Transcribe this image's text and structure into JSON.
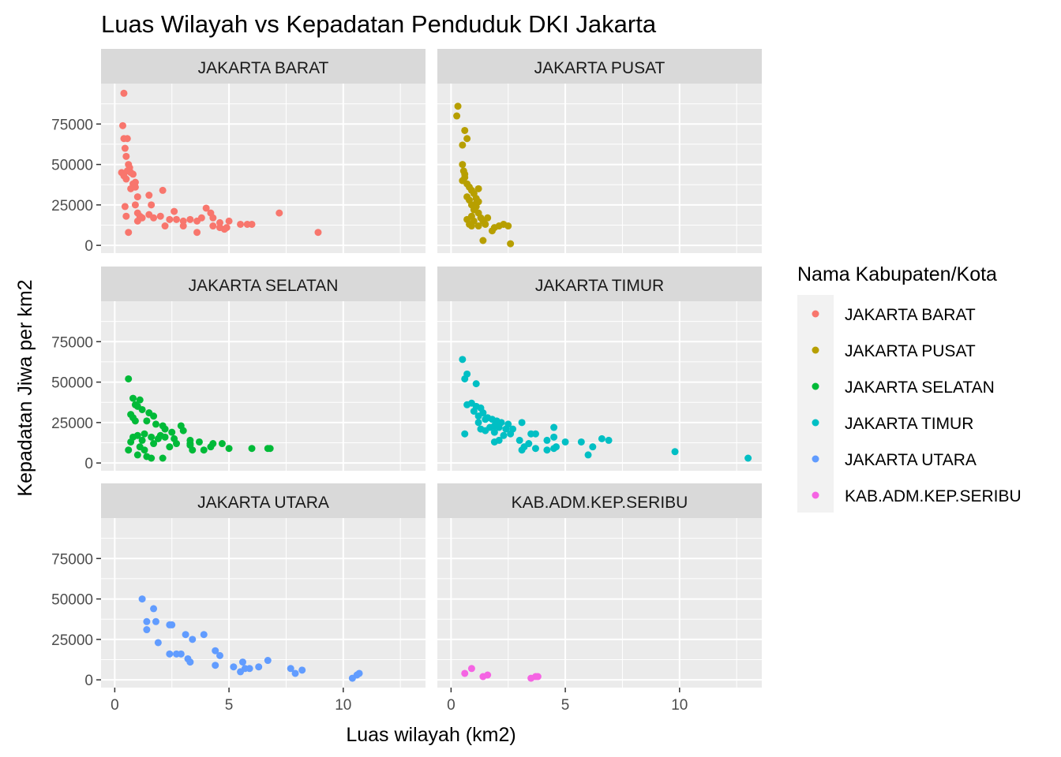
{
  "chart_data": {
    "type": "scatter",
    "title": "Luas Wilayah vs Kepadatan Penduduk DKI Jakarta",
    "xlabel": "Luas wilayah (km2)",
    "ylabel": "Kepadatan Jiwa per km2",
    "xlim": [
      -0.6,
      13.6
    ],
    "ylim": [
      -4800,
      100000
    ],
    "x_ticks": [
      0,
      5,
      10
    ],
    "y_ticks": [
      0,
      25000,
      50000,
      75000
    ],
    "x_tick_labels": [
      "0",
      "5",
      "10"
    ],
    "y_tick_labels": [
      "0",
      "25000",
      "50000",
      "75000"
    ],
    "grid": true,
    "legend_position": "right",
    "legend_title": "Nama Kabupaten/Kota",
    "panels": [
      {
        "name": "JAKARTA BARAT",
        "color": "#F8766D",
        "points": [
          [
            0.4,
            94000
          ],
          [
            0.35,
            74000
          ],
          [
            0.4,
            66000
          ],
          [
            0.55,
            66000
          ],
          [
            0.45,
            60000
          ],
          [
            0.5,
            55000
          ],
          [
            0.6,
            50000
          ],
          [
            0.65,
            48000
          ],
          [
            0.55,
            46000
          ],
          [
            0.3,
            45000
          ],
          [
            0.4,
            43000
          ],
          [
            0.7,
            45000
          ],
          [
            0.8,
            44000
          ],
          [
            0.5,
            41000
          ],
          [
            0.9,
            39000
          ],
          [
            0.8,
            38000
          ],
          [
            0.7,
            35000
          ],
          [
            0.9,
            36000
          ],
          [
            1.0,
            30000
          ],
          [
            2.1,
            34000
          ],
          [
            1.5,
            31000
          ],
          [
            0.45,
            24000
          ],
          [
            0.9,
            25000
          ],
          [
            1.6,
            25000
          ],
          [
            0.5,
            18000
          ],
          [
            1.0,
            20000
          ],
          [
            1.1,
            18000
          ],
          [
            1.2,
            17000
          ],
          [
            1.5,
            19000
          ],
          [
            1.7,
            17000
          ],
          [
            2.0,
            18000
          ],
          [
            1.0,
            15000
          ],
          [
            2.4,
            16000
          ],
          [
            2.6,
            21000
          ],
          [
            2.7,
            16000
          ],
          [
            3.0,
            15000
          ],
          [
            3.3,
            16000
          ],
          [
            3.6,
            15000
          ],
          [
            3.8,
            17000
          ],
          [
            4.0,
            23000
          ],
          [
            4.2,
            20000
          ],
          [
            4.3,
            17000
          ],
          [
            4.6,
            14000
          ],
          [
            4.8,
            10000
          ],
          [
            4.6,
            11000
          ],
          [
            4.9,
            11000
          ],
          [
            5.0,
            15000
          ],
          [
            5.5,
            13000
          ],
          [
            5.8,
            13000
          ],
          [
            6.0,
            13000
          ],
          [
            7.2,
            20000
          ],
          [
            8.9,
            8000
          ],
          [
            0.6,
            8000
          ],
          [
            2.2,
            12000
          ],
          [
            3.6,
            8000
          ],
          [
            3.0,
            12000
          ],
          [
            4.3,
            12000
          ]
        ]
      },
      {
        "name": "JAKARTA PUSAT",
        "color": "#B79F00",
        "points": [
          [
            0.3,
            86000
          ],
          [
            0.25,
            80000
          ],
          [
            0.6,
            71000
          ],
          [
            0.7,
            66000
          ],
          [
            0.5,
            62000
          ],
          [
            0.5,
            50000
          ],
          [
            0.55,
            46000
          ],
          [
            0.6,
            44000
          ],
          [
            0.5,
            40000
          ],
          [
            0.6,
            42000
          ],
          [
            0.7,
            38000
          ],
          [
            0.8,
            36000
          ],
          [
            0.9,
            34000
          ],
          [
            0.7,
            30000
          ],
          [
            0.8,
            28000
          ],
          [
            1.0,
            32000
          ],
          [
            1.1,
            29000
          ],
          [
            1.2,
            27000
          ],
          [
            0.9,
            25000
          ],
          [
            1.0,
            22000
          ],
          [
            1.1,
            24000
          ],
          [
            1.2,
            20000
          ],
          [
            0.7,
            16000
          ],
          [
            0.9,
            18000
          ],
          [
            1.0,
            15000
          ],
          [
            1.3,
            17000
          ],
          [
            1.4,
            15000
          ],
          [
            0.8,
            13000
          ],
          [
            0.9,
            12000
          ],
          [
            1.2,
            12000
          ],
          [
            1.5,
            13000
          ],
          [
            1.6,
            17000
          ],
          [
            1.9,
            11000
          ],
          [
            1.8,
            9000
          ],
          [
            2.1,
            12000
          ],
          [
            2.3,
            13000
          ],
          [
            2.5,
            12000
          ],
          [
            1.4,
            3000
          ],
          [
            2.6,
            1000
          ],
          [
            1.1,
            26000
          ],
          [
            1.2,
            35000
          ]
        ]
      },
      {
        "name": "JAKARTA SELATAN",
        "color": "#00BA38",
        "points": [
          [
            0.6,
            52000
          ],
          [
            0.8,
            40000
          ],
          [
            1.1,
            39000
          ],
          [
            0.9,
            36000
          ],
          [
            1.0,
            35000
          ],
          [
            1.2,
            33000
          ],
          [
            0.7,
            30000
          ],
          [
            1.5,
            31000
          ],
          [
            1.7,
            29000
          ],
          [
            0.8,
            28000
          ],
          [
            0.9,
            26000
          ],
          [
            1.4,
            26000
          ],
          [
            1.8,
            24000
          ],
          [
            2.1,
            23000
          ],
          [
            2.2,
            21000
          ],
          [
            2.9,
            23000
          ],
          [
            3.0,
            20000
          ],
          [
            2.5,
            19000
          ],
          [
            2.0,
            17000
          ],
          [
            1.3,
            18000
          ],
          [
            1.0,
            17000
          ],
          [
            0.8,
            16000
          ],
          [
            1.6,
            16000
          ],
          [
            1.9,
            15000
          ],
          [
            2.2,
            16000
          ],
          [
            2.6,
            15000
          ],
          [
            3.3,
            14000
          ],
          [
            3.7,
            13000
          ],
          [
            4.3,
            12000
          ],
          [
            4.7,
            12000
          ],
          [
            5.0,
            9000
          ],
          [
            4.2,
            10000
          ],
          [
            3.9,
            8000
          ],
          [
            3.4,
            8000
          ],
          [
            3.3,
            11000
          ],
          [
            2.4,
            10000
          ],
          [
            1.7,
            12000
          ],
          [
            1.2,
            14000
          ],
          [
            0.7,
            13000
          ],
          [
            0.6,
            8000
          ],
          [
            1.3,
            8000
          ],
          [
            1.0,
            5000
          ],
          [
            1.4,
            4000
          ],
          [
            1.6,
            3000
          ],
          [
            2.1,
            3000
          ],
          [
            6.0,
            9000
          ],
          [
            6.7,
            9000
          ],
          [
            6.8,
            9000
          ],
          [
            3.3,
            12000
          ],
          [
            2.7,
            12000
          ],
          [
            1.1,
            10000
          ]
        ]
      },
      {
        "name": "JAKARTA TIMUR",
        "color": "#00BFC4",
        "points": [
          [
            0.5,
            64000
          ],
          [
            0.7,
            55000
          ],
          [
            0.6,
            52000
          ],
          [
            1.1,
            49000
          ],
          [
            0.7,
            36000
          ],
          [
            0.9,
            37000
          ],
          [
            1.1,
            35000
          ],
          [
            1.3,
            34000
          ],
          [
            1.0,
            32000
          ],
          [
            1.4,
            31000
          ],
          [
            1.2,
            29000
          ],
          [
            1.6,
            28000
          ],
          [
            1.5,
            27000
          ],
          [
            1.8,
            27000
          ],
          [
            2.0,
            26000
          ],
          [
            2.2,
            25000
          ],
          [
            3.1,
            25000
          ],
          [
            2.5,
            24000
          ],
          [
            1.7,
            22000
          ],
          [
            1.9,
            23000
          ],
          [
            2.1,
            22000
          ],
          [
            2.4,
            21000
          ],
          [
            1.3,
            21000
          ],
          [
            1.5,
            20000
          ],
          [
            0.6,
            18000
          ],
          [
            1.9,
            19000
          ],
          [
            2.6,
            18000
          ],
          [
            2.7,
            21000
          ],
          [
            3.5,
            18000
          ],
          [
            3.7,
            18000
          ],
          [
            4.5,
            22000
          ],
          [
            4.5,
            16000
          ],
          [
            4.2,
            14000
          ],
          [
            3.0,
            14000
          ],
          [
            3.4,
            12000
          ],
          [
            2.1,
            14000
          ],
          [
            1.9,
            13000
          ],
          [
            3.2,
            10000
          ],
          [
            3.7,
            9000
          ],
          [
            4.2,
            8000
          ],
          [
            4.6,
            10000
          ],
          [
            5.0,
            13000
          ],
          [
            5.7,
            13000
          ],
          [
            6.0,
            5000
          ],
          [
            6.2,
            10000
          ],
          [
            6.6,
            15000
          ],
          [
            6.9,
            14000
          ],
          [
            9.8,
            7000
          ],
          [
            13.0,
            3000
          ],
          [
            3.1,
            8000
          ],
          [
            4.5,
            9000
          ],
          [
            1.2,
            25000
          ],
          [
            2.3,
            17000
          ]
        ]
      },
      {
        "name": "JAKARTA UTARA",
        "color": "#619CFF",
        "points": [
          [
            1.2,
            50000
          ],
          [
            1.7,
            44000
          ],
          [
            1.4,
            36000
          ],
          [
            1.8,
            36000
          ],
          [
            1.4,
            31000
          ],
          [
            2.5,
            34000
          ],
          [
            2.4,
            34000
          ],
          [
            3.1,
            28000
          ],
          [
            3.9,
            28000
          ],
          [
            3.4,
            25000
          ],
          [
            1.9,
            23000
          ],
          [
            2.4,
            16000
          ],
          [
            2.7,
            16000
          ],
          [
            2.9,
            16000
          ],
          [
            3.2,
            13000
          ],
          [
            3.3,
            11000
          ],
          [
            4.4,
            18000
          ],
          [
            4.6,
            15000
          ],
          [
            4.4,
            9000
          ],
          [
            5.2,
            8000
          ],
          [
            5.6,
            11000
          ],
          [
            5.7,
            7000
          ],
          [
            5.5,
            5000
          ],
          [
            5.9,
            7000
          ],
          [
            6.3,
            8000
          ],
          [
            6.7,
            12000
          ],
          [
            7.7,
            7000
          ],
          [
            7.9,
            4000
          ],
          [
            8.2,
            6000
          ],
          [
            10.4,
            1000
          ],
          [
            10.6,
            3000
          ],
          [
            10.7,
            4000
          ]
        ]
      },
      {
        "name": "KAB.ADM.KEP.SERIBU",
        "color": "#F564E3",
        "points": [
          [
            0.6,
            4000
          ],
          [
            0.9,
            7000
          ],
          [
            1.4,
            2000
          ],
          [
            1.6,
            3000
          ],
          [
            3.5,
            1000
          ],
          [
            3.7,
            2000
          ],
          [
            3.8,
            2000
          ]
        ]
      }
    ]
  }
}
